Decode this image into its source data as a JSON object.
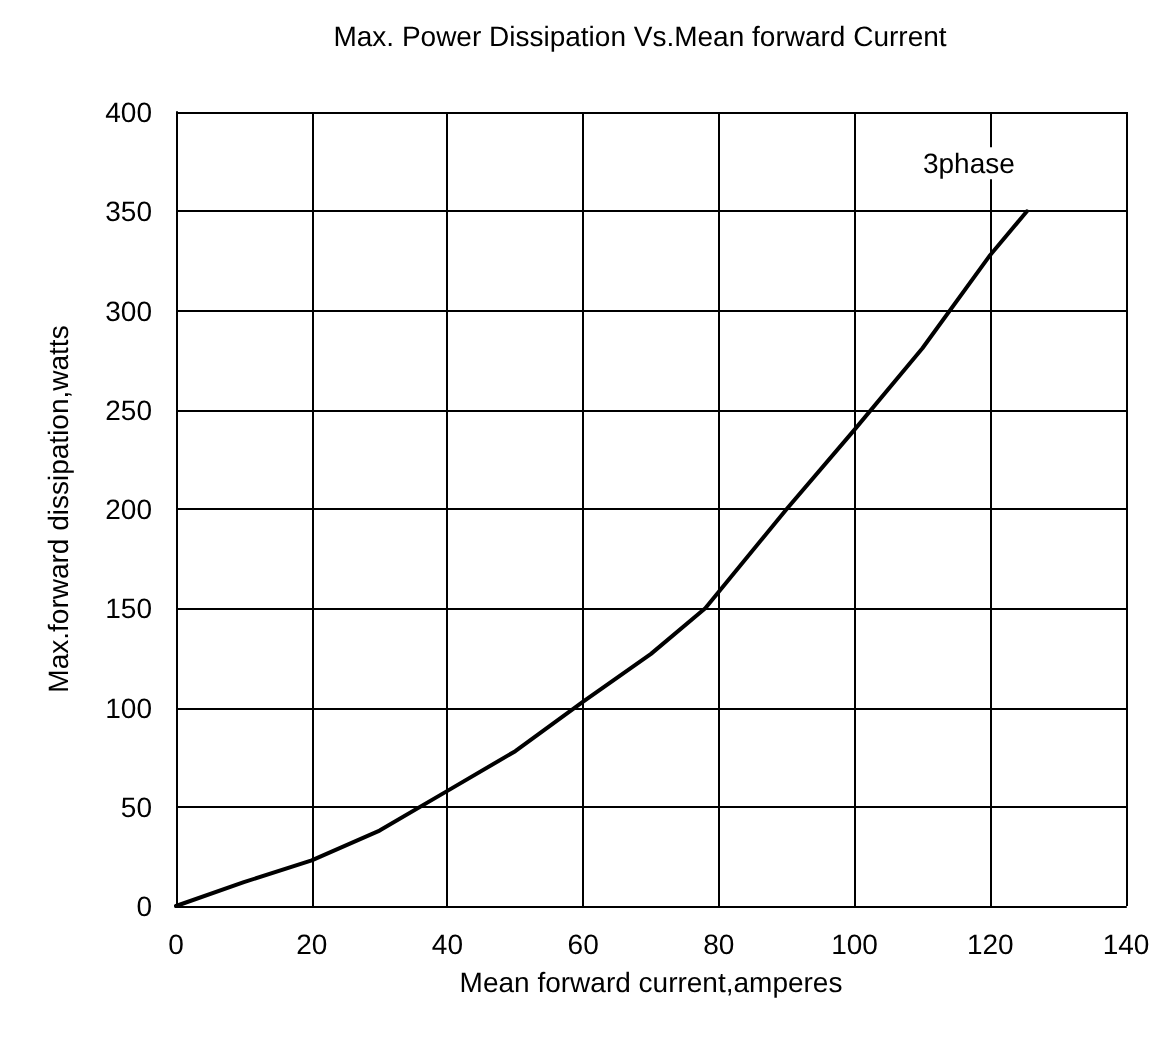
{
  "chart_data": {
    "type": "line",
    "title": "Max. Power Dissipation Vs.Mean forward Current",
    "xlabel": "Mean forward current,amperes",
    "ylabel": "Max.forward dissipation,watts",
    "x": [
      0,
      10,
      20,
      30,
      40,
      50,
      60,
      70,
      78,
      90,
      100,
      110,
      120,
      125.4
    ],
    "series": [
      {
        "name": "3phase",
        "color": "#000000",
        "values": [
          0,
          12,
          23,
          38,
          58,
          78,
          103,
          127,
          150,
          200,
          240,
          281,
          328,
          350
        ]
      }
    ],
    "xlim": [
      0,
      140
    ],
    "xticks": [
      0,
      20,
      40,
      60,
      80,
      100,
      120,
      140
    ],
    "ylim": [
      0,
      400
    ],
    "yticks": [
      0,
      50,
      100,
      150,
      200,
      250,
      300,
      350,
      400
    ],
    "grid": true,
    "marker": "none",
    "line_style": "solid"
  }
}
